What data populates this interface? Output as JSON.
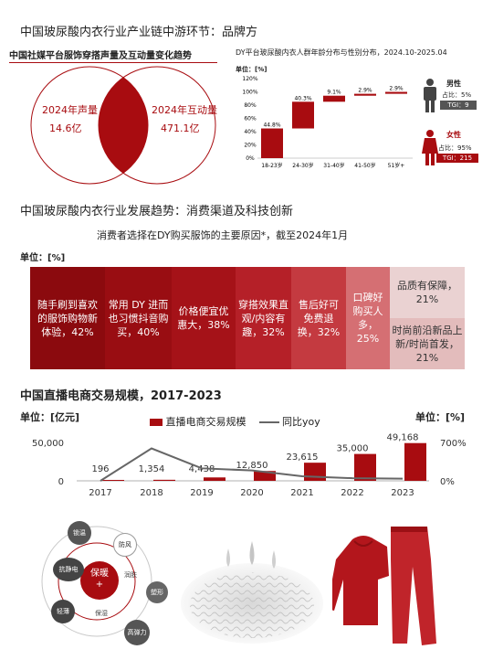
{
  "section1": {
    "title": "中国玻尿酸内衣行业产业链中游环节：品牌方",
    "venn": {
      "title": "中国社媒平台服饰穿搭声量及互动量变化趋势",
      "left_label": "2024年声量",
      "left_value": "14.6亿",
      "right_label": "2024年互动量",
      "right_value": "471.1亿"
    },
    "age": {
      "title": "DY平台玻尿酸内衣人群年龄分布与性别分布，2024.10-2025.04",
      "unit": "单位：[%]",
      "yticks": [
        "120%",
        "100%",
        "80%",
        "60%",
        "40%",
        "20%",
        "0%"
      ],
      "male": {
        "label": "男性",
        "share": "占比：5%",
        "tgi": "TGI：9"
      },
      "female": {
        "label": "女性",
        "share": "占比：95%",
        "tgi": "TGI：215"
      }
    }
  },
  "section2": {
    "title": "中国玻尿酸内衣行业发展趋势：消费渠道及科技创新",
    "subtitle": "消费者选择在DY购买服饰的主要原因*，截至2024年1月",
    "unit": "单位：[%]",
    "reasons": [
      "随手刷到喜欢的服饰购物新体验，42%",
      "常用 DY 进而也习惯抖音购买，40%",
      "价格便宜优惠大，38%",
      "穿搭效果直观/内容有趣，32%",
      "售后好可免费退换，32%",
      "口碑好购买人多，25%",
      "品质有保障，21%",
      "时尚前沿新品上新/时尚首发，21%"
    ],
    "colors": {
      "c1": "#8b0a0e",
      "c2": "#990d12",
      "c3": "#a51218",
      "c4": "#b52028",
      "c5": "#c43a40",
      "c6": "#d56f73",
      "c7": "#ead2d2",
      "c8": "#e3bcbc"
    }
  },
  "section3": {
    "title": "中国直播电商交易规模，2017-2023",
    "unit_left": "单位：[亿元]",
    "unit_right": "单位：[%]",
    "legend_bar": "直播电商交易规模",
    "legend_line": "同比yoy",
    "y_left_ticks": [
      "50,000",
      "0"
    ],
    "y_right_ticks": [
      "700%",
      "0%"
    ]
  },
  "features": {
    "center": "保暖",
    "center_sub": "+",
    "items": [
      "锁温",
      "防风",
      "抗静电",
      "润肤",
      "塑形",
      "轻薄",
      "保湿",
      "高弹力"
    ]
  },
  "chart_data": [
    {
      "type": "bar",
      "title": "DY平台玻尿酸内衣人群年龄分布与性别分布，2024.10-2025.04",
      "categories": [
        "18-23岁",
        "24-30岁",
        "31-40岁",
        "41-50岁",
        "51岁+"
      ],
      "values": [
        44.8,
        40.3,
        9.1,
        2.9,
        2.9
      ],
      "value_labels": [
        "44.8%",
        "40.3%",
        "9.1%",
        "2.9%",
        "2.9%"
      ],
      "ylabel": "单位：[%]",
      "ylim": [
        0,
        120
      ]
    },
    {
      "type": "bar",
      "title": "中国直播电商交易规模，2017-2023",
      "categories": [
        "2017",
        "2018",
        "2019",
        "2020",
        "2021",
        "2022",
        "2023"
      ],
      "series": [
        {
          "name": "直播电商交易规模",
          "values": [
            196,
            1354,
            4438,
            12850,
            23615,
            35000,
            49168
          ],
          "value_labels": [
            "196",
            "1,354",
            "4,438",
            "12,850",
            "23,615",
            "35,000",
            "49,168"
          ]
        },
        {
          "name": "同比yoy",
          "values": [
            0,
            591,
            228,
            190,
            84,
            48,
            40
          ]
        }
      ],
      "ylim": [
        0,
        50000
      ],
      "y2lim": [
        0,
        700
      ]
    }
  ]
}
